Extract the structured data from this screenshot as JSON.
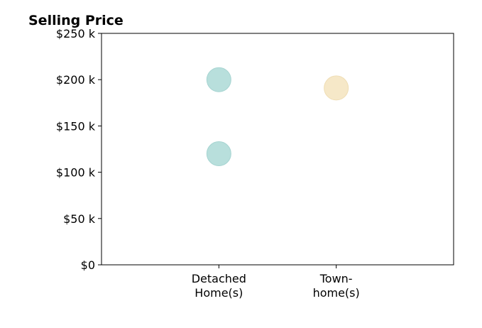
{
  "chart_data": {
    "type": "scatter",
    "title": "Selling Price",
    "xlabel": "",
    "ylabel": "",
    "categories": [
      [
        "Detached",
        "Home(s)"
      ],
      [
        "Town-",
        "home(s)"
      ]
    ],
    "y_ticks": [
      "$0",
      "$50 k",
      "$100 k",
      "$150 k",
      "$200 k",
      "$250 k"
    ],
    "y_tick_values": [
      0,
      50,
      100,
      150,
      200,
      250
    ],
    "ylim": [
      0,
      250
    ],
    "y_unit": "k",
    "grid": false,
    "points": [
      {
        "category": "Detached Home(s)",
        "y": 200,
        "color": "#b8dfdc"
      },
      {
        "category": "Detached Home(s)",
        "y": 120,
        "color": "#b8dfdc"
      },
      {
        "category": "Town-home(s)",
        "y": 191,
        "color": "#f6e8c8"
      }
    ],
    "colors": {
      "detached": "#b8dfdc",
      "detached_edge": "#a6d4d1",
      "townhome": "#f6e8c8",
      "townhome_edge": "#efddb4"
    }
  }
}
